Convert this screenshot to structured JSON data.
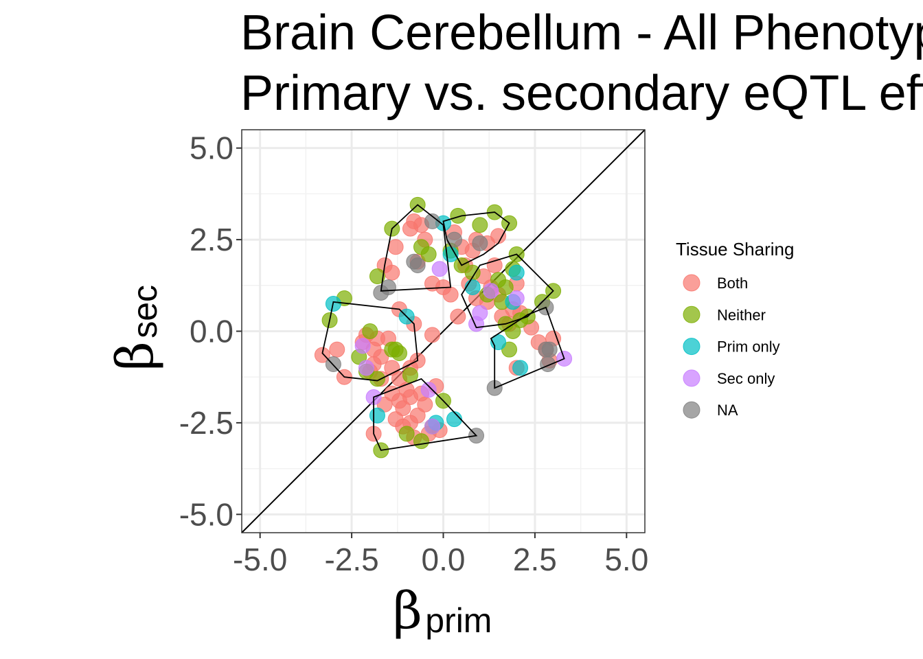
{
  "chart_data": {
    "type": "scatter",
    "title_line1": "Brain Cerebellum - All Phenotypes",
    "title_line2": "Primary vs. secondary eQTL effect sizes",
    "xlabel": {
      "symbol": "β",
      "subscript": "prim"
    },
    "ylabel": {
      "symbol": "β",
      "subscript": "sec"
    },
    "xlim": [
      -5.5,
      5.5
    ],
    "ylim": [
      -5.5,
      5.5
    ],
    "x_ticks": [
      -5,
      -2.5,
      0,
      2.5,
      5
    ],
    "y_ticks": [
      -5,
      -2.5,
      0,
      2.5,
      5
    ],
    "x_tick_labels": [
      "-5.0",
      "-2.5",
      "0.0",
      "2.5",
      "5.0"
    ],
    "y_tick_labels": [
      "-5.0",
      "-2.5",
      "0.0",
      "2.5",
      "5.0"
    ],
    "grid": true,
    "reference_line": "y = x",
    "legend": {
      "title": "Tissue Sharing",
      "position": "right",
      "entries": [
        {
          "label": "Both",
          "color": "#F8766D"
        },
        {
          "label": "Neither",
          "color": "#7CAE00"
        },
        {
          "label": "Prim only",
          "color": "#00BFC4"
        },
        {
          "label": "Sec only",
          "color": "#C77CFF"
        },
        {
          "label": "NA",
          "color": "#7F7F7F"
        }
      ]
    },
    "series": [
      {
        "name": "Both",
        "color": "#F8766D",
        "points": [
          [
            -0.8,
            3.0
          ],
          [
            -0.6,
            2.9
          ],
          [
            -0.9,
            2.8
          ],
          [
            -0.5,
            2.5
          ],
          [
            -1.3,
            2.3
          ],
          [
            -1.6,
            1.8
          ],
          [
            -1.4,
            1.6
          ],
          [
            -0.7,
            1.9
          ],
          [
            -0.3,
            1.3
          ],
          [
            0.0,
            1.2
          ],
          [
            0.3,
            2.7
          ],
          [
            0.5,
            2.3
          ],
          [
            0.9,
            2.5
          ],
          [
            1.2,
            2.4
          ],
          [
            0.8,
            2.2
          ],
          [
            1.5,
            2.6
          ],
          [
            1.1,
            1.5
          ],
          [
            1.3,
            1.2
          ],
          [
            1.5,
            1.0
          ],
          [
            0.9,
            0.9
          ],
          [
            0.7,
            1.3
          ],
          [
            1.6,
            0.4
          ],
          [
            1.8,
            0.2
          ],
          [
            1.2,
            0.8
          ],
          [
            1.4,
            1.8
          ],
          [
            2.0,
            1.3
          ],
          [
            2.1,
            0.5
          ],
          [
            2.4,
            0.1
          ],
          [
            2.6,
            -0.3
          ],
          [
            2.8,
            -0.5
          ],
          [
            3.0,
            -0.2
          ],
          [
            2.9,
            -0.8
          ],
          [
            2.0,
            -1.0
          ],
          [
            -1.2,
            0.6
          ],
          [
            -0.8,
            0.2
          ],
          [
            -1.5,
            -0.2
          ],
          [
            -1.9,
            -0.5
          ],
          [
            -1.7,
            -0.7
          ],
          [
            -1.4,
            -1.0
          ],
          [
            -1.9,
            -0.9
          ],
          [
            -2.2,
            -0.3
          ],
          [
            -3.3,
            -0.65
          ],
          [
            -2.9,
            -0.5
          ],
          [
            -2.7,
            -1.25
          ],
          [
            -0.7,
            -0.8
          ],
          [
            -1.2,
            -1.3
          ],
          [
            -1.4,
            -1.7
          ],
          [
            -0.9,
            -1.8
          ],
          [
            -0.5,
            -2.0
          ],
          [
            -1.1,
            -2.1
          ],
          [
            -0.7,
            -2.3
          ],
          [
            -1.3,
            -2.4
          ],
          [
            -0.9,
            -2.5
          ],
          [
            -0.4,
            -2.8
          ],
          [
            -1.1,
            -2.6
          ],
          [
            -0.8,
            -2.9
          ],
          [
            -1.9,
            -2.8
          ],
          [
            -0.1,
            -2.7
          ],
          [
            -1.6,
            -2.0
          ],
          [
            -1.2,
            -1.9
          ],
          [
            -0.6,
            -1.7
          ],
          [
            -1.0,
            -1.6
          ],
          [
            -1.7,
            -1.3
          ],
          [
            -0.2,
            -1.5
          ],
          [
            -2.0,
            -1.1
          ],
          [
            -0.9,
            -1.0
          ],
          [
            -0.3,
            -0.1
          ],
          [
            -2.1,
            -0.1
          ],
          [
            -1.8,
            -0.2
          ],
          [
            0.2,
            1.0
          ],
          [
            0.6,
            1.8
          ],
          [
            1.9,
            0.6
          ],
          [
            0.4,
            0.4
          ]
        ]
      },
      {
        "name": "Neither",
        "color": "#7CAE00",
        "points": [
          [
            -0.7,
            3.45
          ],
          [
            -1.4,
            2.8
          ],
          [
            -0.6,
            2.3
          ],
          [
            -0.4,
            2.1
          ],
          [
            -1.8,
            1.5
          ],
          [
            0.4,
            3.15
          ],
          [
            1.4,
            3.25
          ],
          [
            1.8,
            2.95
          ],
          [
            1.0,
            2.9
          ],
          [
            0.5,
            1.8
          ],
          [
            0.8,
            1.6
          ],
          [
            1.5,
            1.4
          ],
          [
            1.7,
            1.2
          ],
          [
            2.0,
            2.1
          ],
          [
            1.9,
            1.7
          ],
          [
            1.6,
            0.8
          ],
          [
            2.1,
            0.3
          ],
          [
            2.3,
            0.4
          ],
          [
            2.7,
            0.8
          ],
          [
            3.0,
            1.1
          ],
          [
            1.7,
            0.2
          ],
          [
            1.9,
            0.0
          ],
          [
            1.8,
            -0.5
          ],
          [
            -2.7,
            0.9
          ],
          [
            -3.1,
            0.3
          ],
          [
            -2.3,
            -0.7
          ],
          [
            -2.1,
            -1.1
          ],
          [
            -1.8,
            -1.3
          ],
          [
            -1.4,
            -0.5
          ],
          [
            -1.3,
            -0.5
          ],
          [
            -1.2,
            -0.6
          ],
          [
            -0.9,
            -1.2
          ],
          [
            -1.0,
            -2.8
          ],
          [
            -0.6,
            -3.0
          ],
          [
            -0.3,
            -2.6
          ],
          [
            0.0,
            -1.9
          ],
          [
            -1.7,
            -3.25
          ],
          [
            -2.0,
            0.0
          ],
          [
            1.2,
            1.0
          ],
          [
            0.2,
            2.2
          ]
        ]
      },
      {
        "name": "Prim only",
        "color": "#00BFC4",
        "points": [
          [
            0.0,
            2.95
          ],
          [
            0.2,
            2.1
          ],
          [
            -1.0,
            0.4
          ],
          [
            -3.0,
            0.75
          ],
          [
            -1.8,
            -2.3
          ],
          [
            -0.2,
            -2.5
          ],
          [
            0.3,
            -2.4
          ],
          [
            2.0,
            1.6
          ],
          [
            1.9,
            0.8
          ],
          [
            1.5,
            -0.3
          ],
          [
            2.1,
            -1.0
          ],
          [
            0.8,
            1.2
          ]
        ]
      },
      {
        "name": "Sec only",
        "color": "#C77CFF",
        "points": [
          [
            -0.1,
            1.7
          ],
          [
            0.9,
            0.2
          ],
          [
            1.0,
            0.5
          ],
          [
            2.0,
            0.9
          ],
          [
            3.3,
            -0.75
          ],
          [
            -2.1,
            -1.0
          ],
          [
            -1.9,
            -1.8
          ],
          [
            -0.4,
            -1.6
          ],
          [
            -0.3,
            -2.6
          ],
          [
            -2.2,
            -0.4
          ],
          [
            1.3,
            1.1
          ]
        ]
      },
      {
        "name": "NA",
        "color": "#7F7F7F",
        "points": [
          [
            -0.3,
            3.0
          ],
          [
            -0.8,
            1.9
          ],
          [
            -0.7,
            1.8
          ],
          [
            -1.5,
            1.2
          ],
          [
            -1.7,
            1.05
          ],
          [
            0.3,
            2.5
          ],
          [
            1.0,
            2.4
          ],
          [
            2.8,
            0.65
          ],
          [
            2.8,
            -0.5
          ],
          [
            2.9,
            -0.5
          ],
          [
            2.85,
            -0.9
          ],
          [
            1.4,
            -1.55
          ],
          [
            0.9,
            -2.85
          ],
          [
            -3.0,
            -0.9
          ]
        ]
      }
    ],
    "hulls": [
      [
        [
          -1.7,
          1.1
        ],
        [
          0.2,
          1.2
        ],
        [
          0.0,
          2.9
        ],
        [
          -0.7,
          3.45
        ],
        [
          -1.4,
          2.8
        ],
        [
          -1.6,
          1.8
        ]
      ],
      [
        [
          0.0,
          3.0
        ],
        [
          0.5,
          3.15
        ],
        [
          1.4,
          3.25
        ],
        [
          1.8,
          2.95
        ],
        [
          1.5,
          2.4
        ],
        [
          1.1,
          2.1
        ],
        [
          0.5,
          1.8
        ],
        [
          0.1,
          2.5
        ]
      ],
      [
        [
          0.5,
          1.0
        ],
        [
          1.0,
          1.8
        ],
        [
          2.0,
          2.1
        ],
        [
          3.0,
          1.1
        ],
        [
          2.3,
          0.4
        ],
        [
          1.7,
          0.2
        ],
        [
          0.9,
          0.1
        ]
      ],
      [
        [
          1.3,
          -0.2
        ],
        [
          2.3,
          0.45
        ],
        [
          2.8,
          0.65
        ],
        [
          3.3,
          -0.75
        ],
        [
          1.4,
          -1.55
        ],
        [
          1.4,
          -0.4
        ]
      ],
      [
        [
          -3.3,
          -0.6
        ],
        [
          -3.1,
          0.3
        ],
        [
          -3.0,
          0.8
        ],
        [
          -1.2,
          0.6
        ],
        [
          -0.8,
          0.2
        ],
        [
          -0.7,
          -0.8
        ],
        [
          -1.8,
          -1.35
        ],
        [
          -2.7,
          -1.25
        ]
      ],
      [
        [
          -1.9,
          -1.8
        ],
        [
          -1.9,
          -2.8
        ],
        [
          -1.7,
          -3.25
        ],
        [
          0.9,
          -2.85
        ],
        [
          0.0,
          -1.9
        ],
        [
          -0.6,
          -1.3
        ]
      ]
    ]
  }
}
